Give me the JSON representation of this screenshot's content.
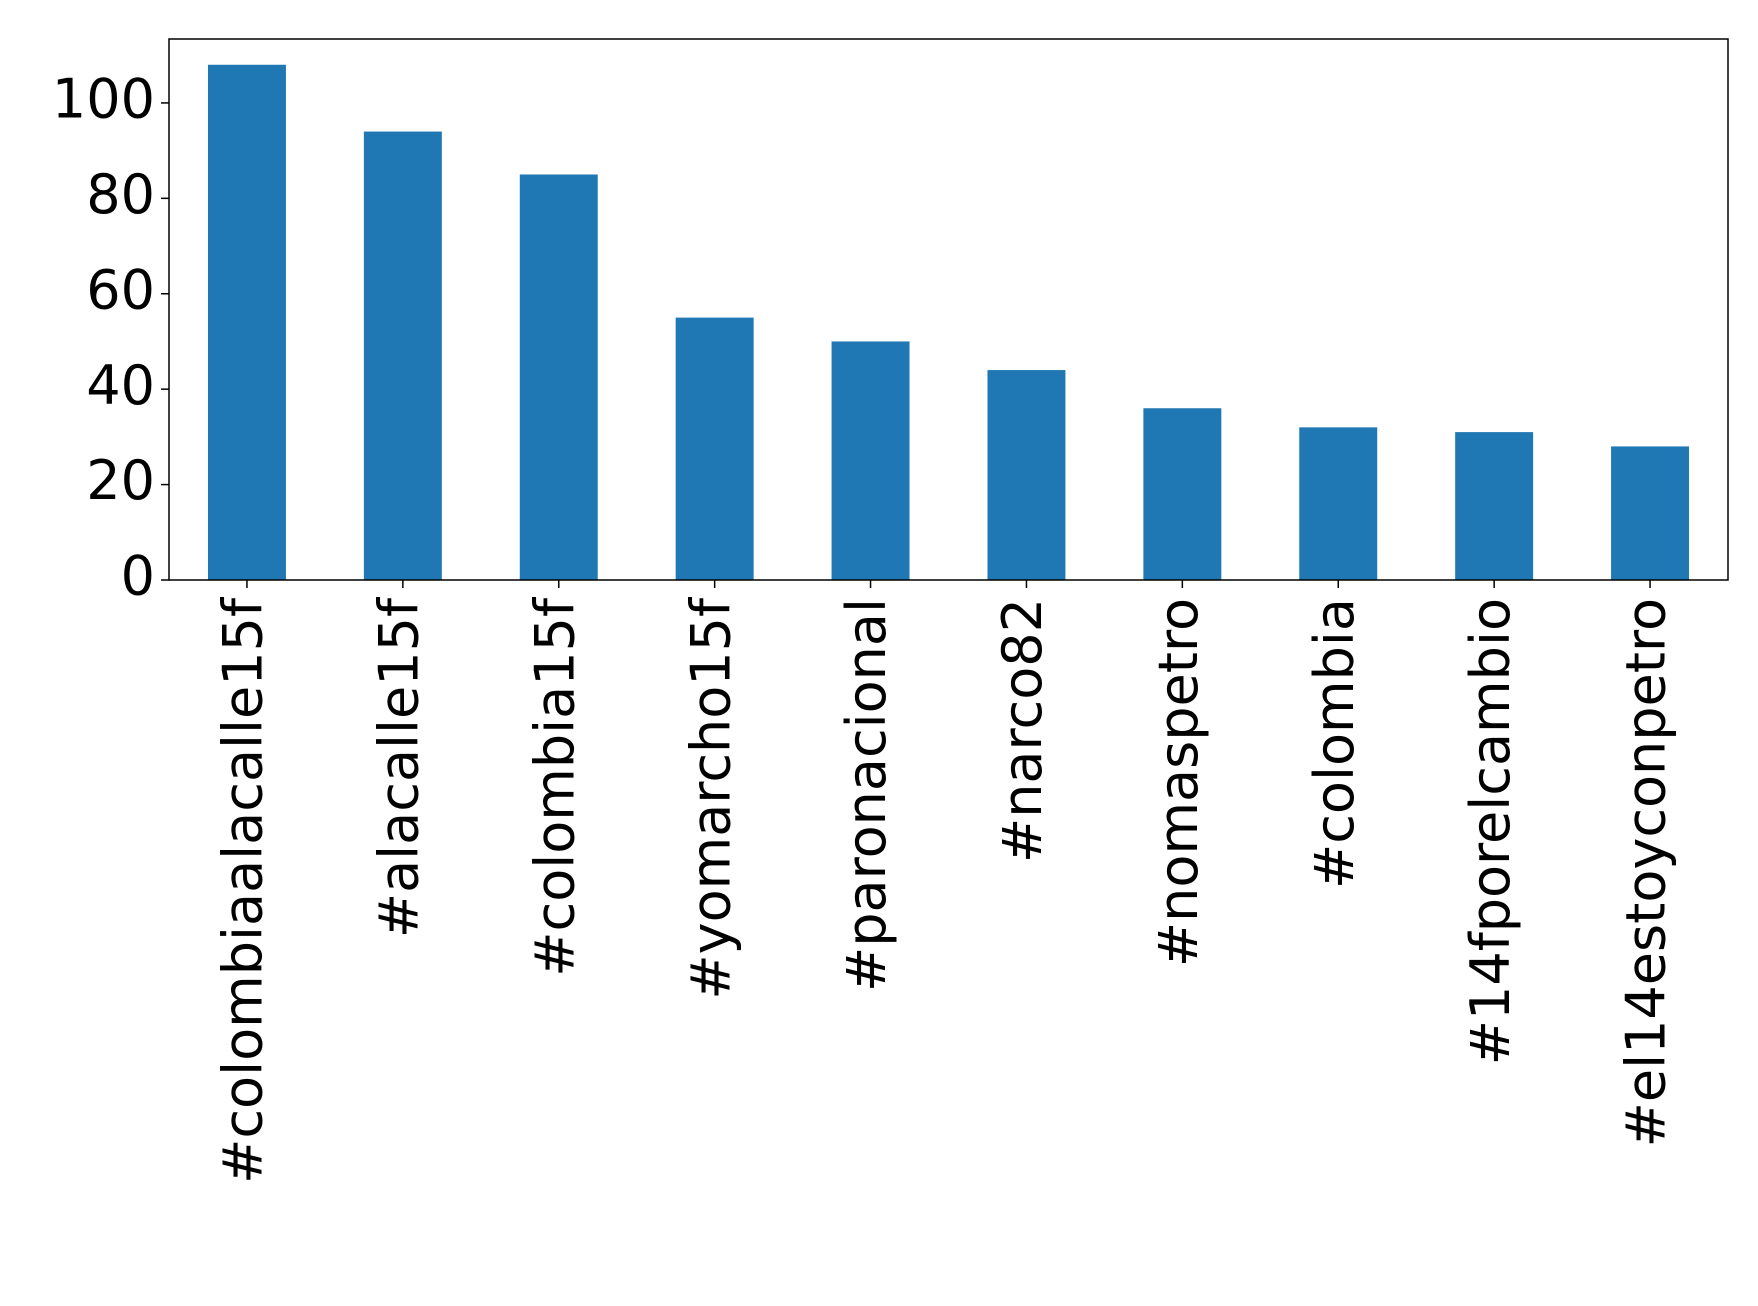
{
  "chart_data": {
    "type": "bar",
    "categories": [
      "#colombiaalacalle15f",
      "#alacalle15f",
      "#colombia15f",
      "#yomarcho15f",
      "#paronacional",
      "#narco82",
      "#nomaspetro",
      "#colombia",
      "#14fporelcambio",
      "#el14estoyconpetro"
    ],
    "values": [
      108,
      94,
      85,
      55,
      50,
      44,
      36,
      32,
      31,
      28
    ],
    "color": "#1f77b4",
    "ylim": [
      0,
      113.4
    ],
    "yticks": [
      0,
      20,
      40,
      60,
      80,
      100
    ],
    "grid": false
  }
}
